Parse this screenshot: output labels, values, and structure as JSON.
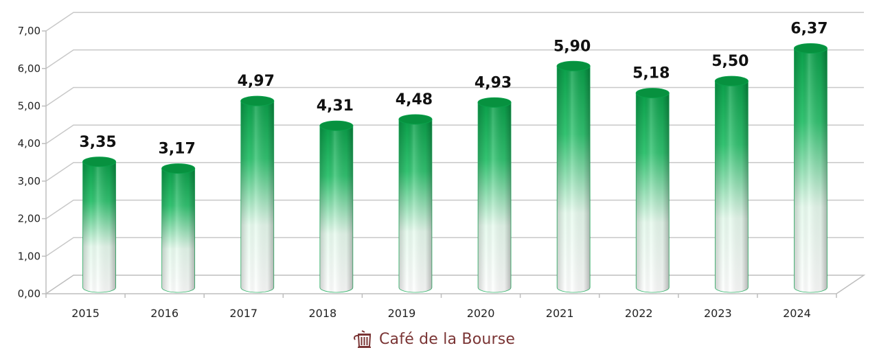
{
  "chart_data": {
    "type": "bar",
    "style": "3d-cylinder",
    "title": "",
    "xlabel": "",
    "ylabel": "",
    "categories": [
      "2015",
      "2016",
      "2017",
      "2018",
      "2019",
      "2020",
      "2021",
      "2022",
      "2023",
      "2024"
    ],
    "values": [
      3.35,
      3.17,
      4.97,
      4.31,
      4.48,
      4.93,
      5.9,
      5.18,
      5.5,
      6.37
    ],
    "value_labels": [
      "3,35",
      "3,17",
      "4,97",
      "4,31",
      "4,48",
      "4,93",
      "5,90",
      "5,18",
      "5,50",
      "6,37"
    ],
    "ylim": [
      0,
      7
    ],
    "yticks": [
      0,
      1,
      2,
      3,
      4,
      5,
      6,
      7
    ],
    "ytick_labels": [
      "0,00",
      "1,00",
      "2,00",
      "3,00",
      "4,00",
      "5,00",
      "6,00",
      "7,00"
    ],
    "grid": true,
    "legend": null,
    "colors": {
      "bar_top": "#0a9a48",
      "bar_mid": "#3cc878",
      "bar_bottom": "#ffffff",
      "grid": "#c8c8c8"
    }
  },
  "branding": {
    "logo_text": "Café de la Bourse",
    "logo_icon": "coffee-pot-icon",
    "color": "#7a3434"
  }
}
